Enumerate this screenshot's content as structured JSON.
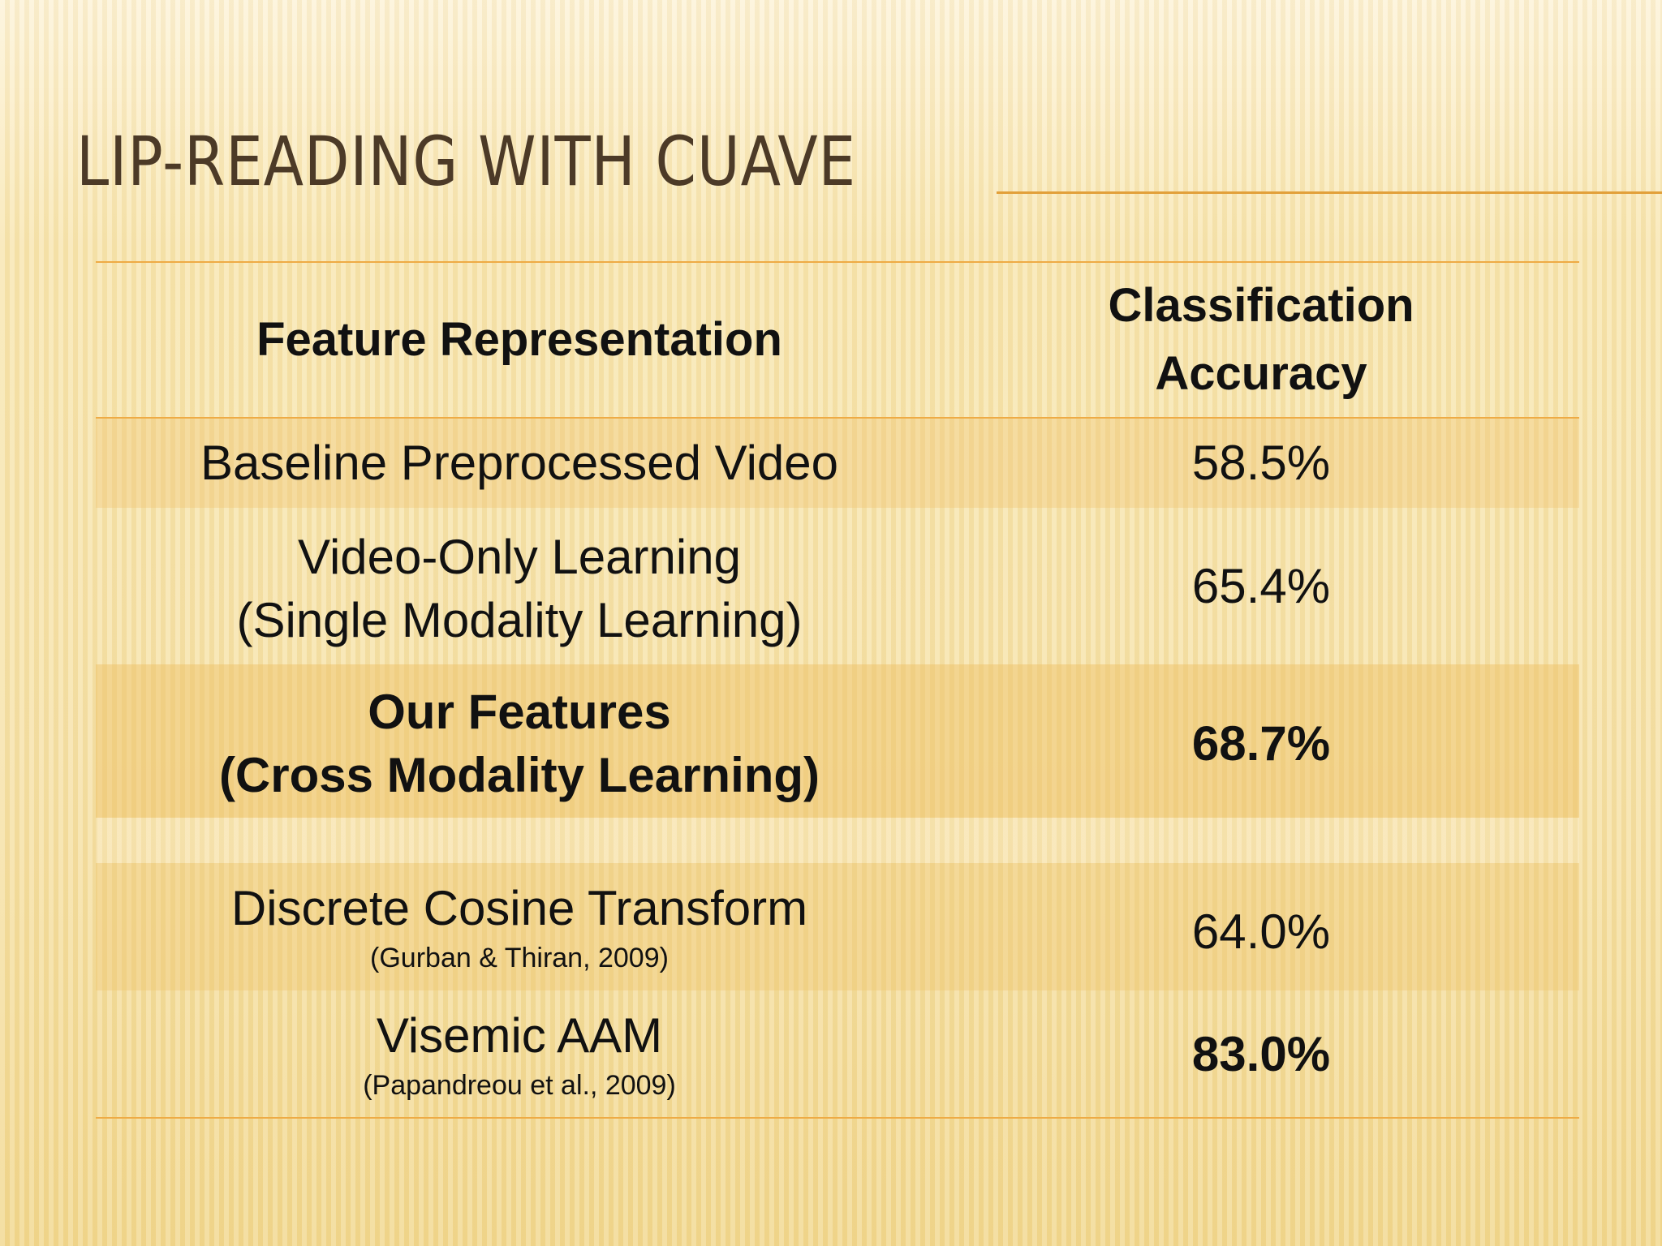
{
  "header": {
    "title": "LIP-READING WITH CUAVE"
  },
  "table": {
    "columns": [
      [
        "Feature Representation"
      ],
      [
        "Classification",
        "Accuracy"
      ]
    ],
    "rows": [
      {
        "feature": [
          "Baseline Preprocessed Video"
        ],
        "accuracy": "58.5%"
      },
      {
        "feature": [
          "Video-Only Learning",
          "(Single Modality Learning)"
        ],
        "accuracy": "65.4%"
      },
      {
        "feature": [
          "Our Features",
          "(Cross Modality Learning)"
        ],
        "accuracy": "68.7%"
      },
      {
        "feature": [
          "Discrete Cosine Transform"
        ],
        "note": "(Gurban & Thiran, 2009)",
        "accuracy": "64.0%"
      },
      {
        "feature": [
          "Visemic AAM"
        ],
        "note": "(Papandreou et al., 2009)",
        "accuracy": "83.0%"
      }
    ]
  }
}
